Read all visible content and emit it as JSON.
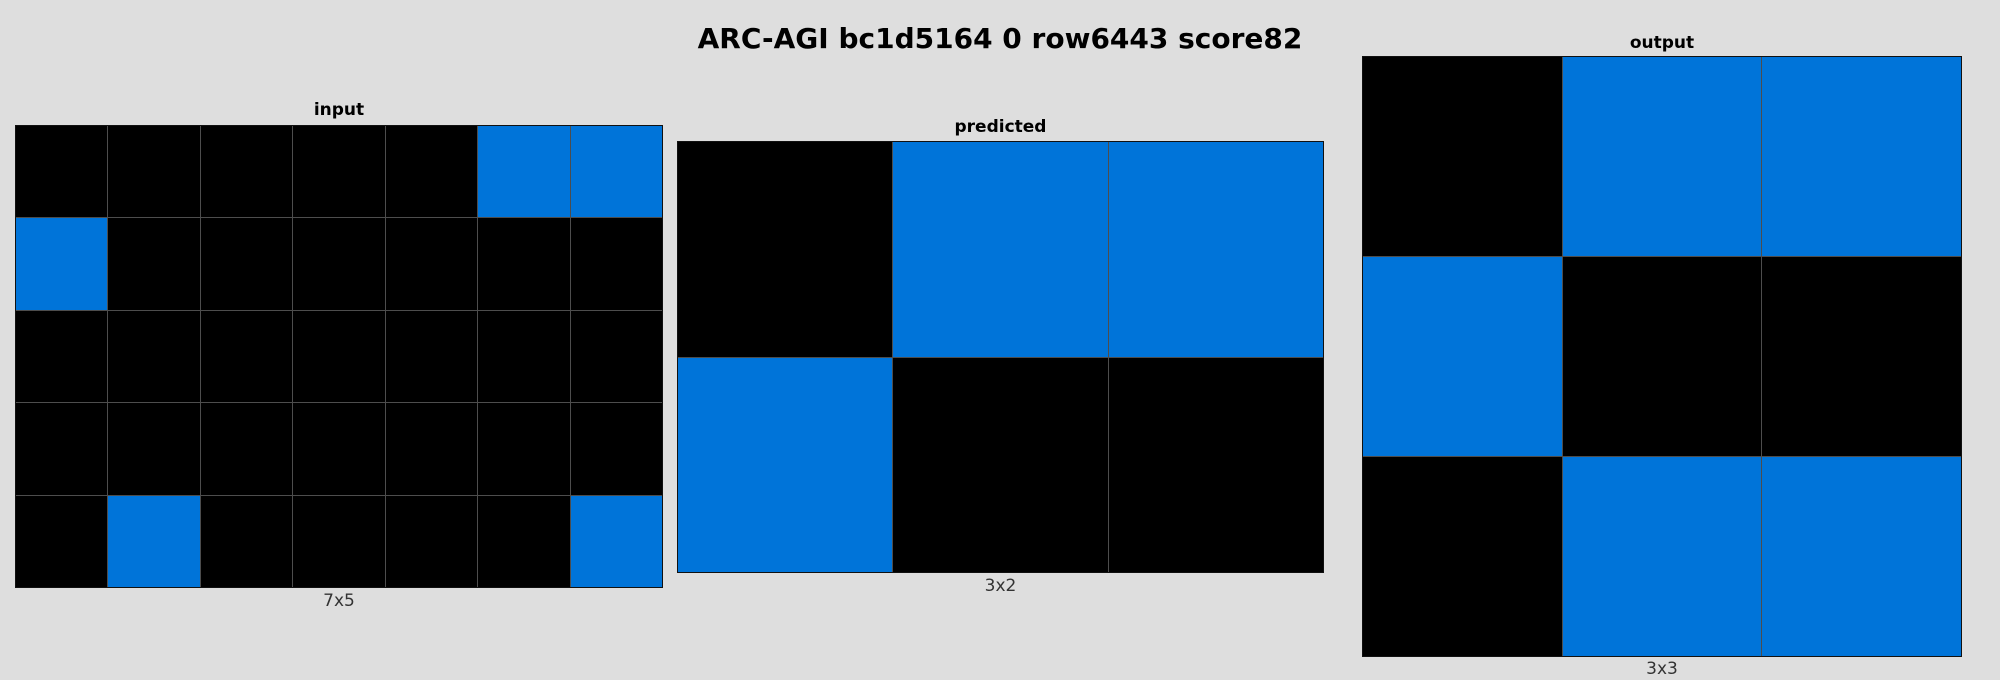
{
  "title": "ARC-AGI bc1d5164 0 row6443 score82",
  "palette": {
    "0": "#000000",
    "1": "#0074d9"
  },
  "panels": [
    {
      "label": "input",
      "dims": "7x5",
      "grid": [
        [
          0,
          0,
          0,
          0,
          0,
          1,
          1
        ],
        [
          1,
          0,
          0,
          0,
          0,
          0,
          0
        ],
        [
          0,
          0,
          0,
          0,
          0,
          0,
          0
        ],
        [
          0,
          0,
          0,
          0,
          0,
          0,
          0
        ],
        [
          0,
          1,
          0,
          0,
          0,
          0,
          1
        ]
      ]
    },
    {
      "label": "predicted",
      "dims": "3x2",
      "grid": [
        [
          0,
          1,
          1
        ],
        [
          1,
          0,
          0
        ]
      ]
    },
    {
      "label": "output",
      "dims": "3x3",
      "grid": [
        [
          0,
          1,
          1
        ],
        [
          1,
          0,
          0
        ],
        [
          0,
          1,
          1
        ]
      ]
    }
  ]
}
